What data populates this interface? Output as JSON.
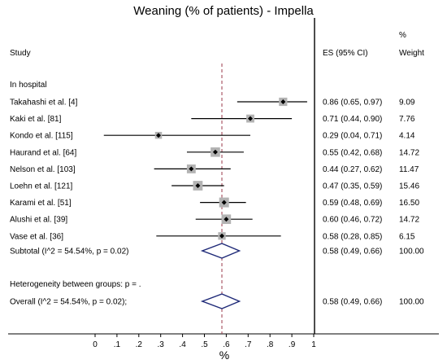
{
  "chart_data": {
    "type": "forest",
    "title": "Weaning (% of patients) - Impella",
    "xlabel": "%",
    "xlim": [
      0,
      1
    ],
    "xticks": [
      "0",
      ".1",
      ".2",
      ".3",
      ".4",
      ".5",
      ".6",
      ".7",
      ".8",
      ".9",
      "1"
    ],
    "overall_line": 0.58,
    "headers": {
      "study": "Study",
      "es": "ES (95% CI)",
      "weight_top": "%",
      "weight": "Weight"
    },
    "group": "In hospital",
    "studies": [
      {
        "name": "Takahashi et al. [4]",
        "es": 0.86,
        "lo": 0.65,
        "hi": 0.97,
        "es_text": "0.86 (0.65, 0.97)",
        "weight": "9.09"
      },
      {
        "name": "Kaki et al. [81]",
        "es": 0.71,
        "lo": 0.44,
        "hi": 0.9,
        "es_text": "0.71 (0.44, 0.90)",
        "weight": "7.76"
      },
      {
        "name": "Kondo et al. [115]",
        "es": 0.29,
        "lo": 0.04,
        "hi": 0.71,
        "es_text": "0.29 (0.04, 0.71)",
        "weight": "4.14"
      },
      {
        "name": "Haurand et al. [64]",
        "es": 0.55,
        "lo": 0.42,
        "hi": 0.68,
        "es_text": "0.55 (0.42, 0.68)",
        "weight": "14.72"
      },
      {
        "name": "Nelson et al. [103]",
        "es": 0.44,
        "lo": 0.27,
        "hi": 0.62,
        "es_text": "0.44 (0.27, 0.62)",
        "weight": "11.47"
      },
      {
        "name": "Loehn et al. [121]",
        "es": 0.47,
        "lo": 0.35,
        "hi": 0.59,
        "es_text": "0.47 (0.35, 0.59)",
        "weight": "15.46"
      },
      {
        "name": "Karami et al. [51]",
        "es": 0.59,
        "lo": 0.48,
        "hi": 0.69,
        "es_text": "0.59 (0.48, 0.69)",
        "weight": "16.50"
      },
      {
        "name": "Alushi et al. [39]",
        "es": 0.6,
        "lo": 0.46,
        "hi": 0.72,
        "es_text": "0.60 (0.46, 0.72)",
        "weight": "14.72"
      },
      {
        "name": "Vase et al. [36]",
        "es": 0.58,
        "lo": 0.28,
        "hi": 0.85,
        "es_text": "0.58 (0.28, 0.85)",
        "weight": "6.15"
      }
    ],
    "subtotal": {
      "label": "Subtotal  (I^2 = 54.54%, p = 0.02)",
      "es": 0.58,
      "lo": 0.49,
      "hi": 0.66,
      "es_text": "0.58 (0.49, 0.66)",
      "weight": "100.00"
    },
    "heterogeneity": "Heterogeneity between groups: p = .",
    "overall": {
      "label": "Overall  (I^2 = 54.54%, p = 0.02);",
      "es": 0.58,
      "lo": 0.49,
      "hi": 0.66,
      "es_text": "0.58 (0.49, 0.66)",
      "weight": "100.00"
    },
    "colors": {
      "box": "#b3b3b3",
      "diamond": "#1f2a78",
      "line": "#000000",
      "ref": "#9b3a4a"
    }
  }
}
